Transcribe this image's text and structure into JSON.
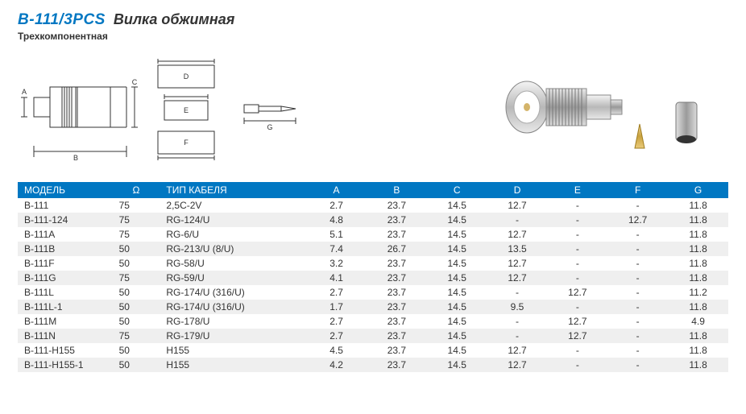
{
  "header": {
    "part_no": "B-111/3PCS",
    "title": "Вилка обжимная",
    "subtitle": "Трехкомпонентная"
  },
  "table": {
    "columns": [
      "МОДЕЛЬ",
      "Ω",
      "ТИП КАБЕЛЯ",
      "A",
      "B",
      "C",
      "D",
      "E",
      "F",
      "G"
    ],
    "rows": [
      [
        "B-111",
        "75",
        "2,5C-2V",
        "2.7",
        "23.7",
        "14.5",
        "12.7",
        "-",
        "-",
        "11.8"
      ],
      [
        "B-111-124",
        "75",
        "RG-124/U",
        "4.8",
        "23.7",
        "14.5",
        "-",
        "-",
        "12.7",
        "11.8"
      ],
      [
        "B-111A",
        "75",
        "RG-6/U",
        "5.1",
        "23.7",
        "14.5",
        "12.7",
        "-",
        "-",
        "11.8"
      ],
      [
        "B-111B",
        "50",
        "RG-213/U (8/U)",
        "7.4",
        "26.7",
        "14.5",
        "13.5",
        "-",
        "-",
        "11.8"
      ],
      [
        "B-111F",
        "50",
        "RG-58/U",
        "3.2",
        "23.7",
        "14.5",
        "12.7",
        "-",
        "-",
        "11.8"
      ],
      [
        "B-111G",
        "75",
        "RG-59/U",
        "4.1",
        "23.7",
        "14.5",
        "12.7",
        "-",
        "-",
        "11.8"
      ],
      [
        "B-111L",
        "50",
        "RG-174/U (316/U)",
        "2.7",
        "23.7",
        "14.5",
        "-",
        "12.7",
        "-",
        "11.2"
      ],
      [
        "B-111L-1",
        "50",
        "RG-174/U (316/U)",
        "1.7",
        "23.7",
        "14.5",
        "9.5",
        "-",
        "-",
        "11.8"
      ],
      [
        "B-111M",
        "50",
        "RG-178/U",
        "2.7",
        "23.7",
        "14.5",
        "-",
        "12.7",
        "-",
        "4.9"
      ],
      [
        "B-111N",
        "75",
        "RG-179/U",
        "2.7",
        "23.7",
        "14.5",
        "-",
        "12.7",
        "-",
        "11.8"
      ],
      [
        "B-111-H155",
        "50",
        "H155",
        "4.5",
        "23.7",
        "14.5",
        "12.7",
        "-",
        "-",
        "11.8"
      ],
      [
        "B-111-H155-1",
        "50",
        "H155",
        "4.2",
        "23.7",
        "14.5",
        "12.7",
        "-",
        "-",
        "11.8"
      ]
    ],
    "header_bg": "#0077c2",
    "header_fg": "#ffffff",
    "row_alt_bg": "#efefef",
    "fontsize": 12
  },
  "drawing": {
    "labels": {
      "A": "A",
      "B": "B",
      "C": "C",
      "D": "D",
      "E": "E",
      "F": "F",
      "G": "G"
    },
    "stroke": "#333333",
    "stroke_width": 1,
    "fontsize": 9
  },
  "colors": {
    "accent": "#0077c2",
    "text": "#333333",
    "bg": "#ffffff"
  }
}
